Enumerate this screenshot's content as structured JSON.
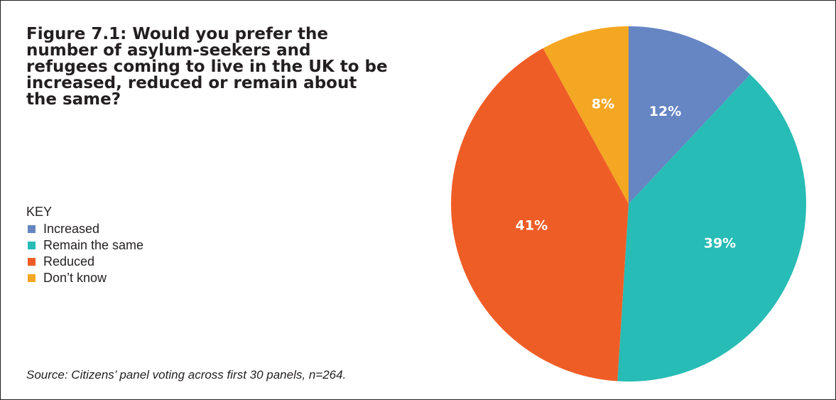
{
  "chart_data": {
    "type": "pie",
    "title": "Figure 7.1: Would you prefer the number of asylum-seekers and refugees coming to live in the UK to be increased, reduced or remain about the same?",
    "legend_title": "KEY",
    "legend_placement": "left",
    "categories": [
      "Increased",
      "Remain the same",
      "Reduced",
      "Don’t know"
    ],
    "values": [
      12,
      39,
      41,
      8
    ],
    "labels": [
      "12%",
      "39%",
      "41%",
      "8%"
    ],
    "colors": [
      "#6585c3",
      "#27bcb5",
      "#ef5d26",
      "#f4a722"
    ],
    "source": "Source: Citizens’ panel voting across first 30 panels, n=264."
  }
}
